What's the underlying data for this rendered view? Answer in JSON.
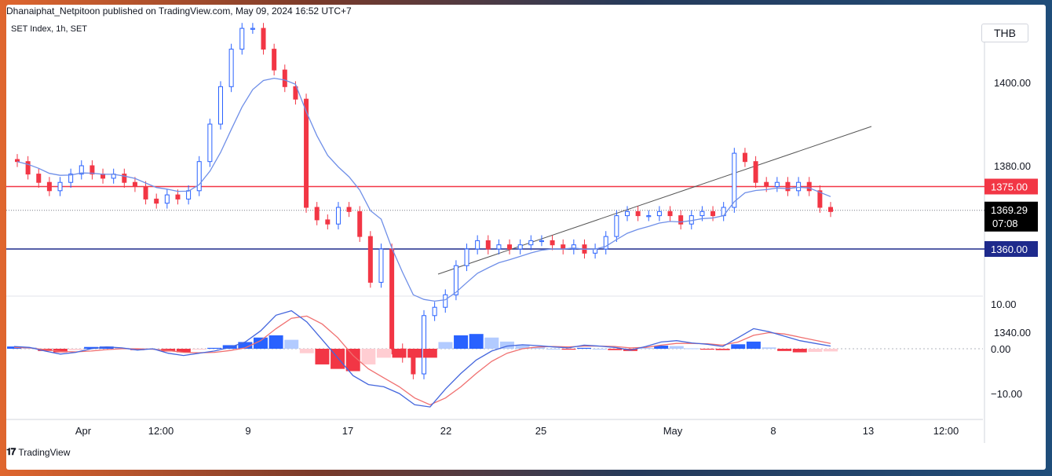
{
  "header": {
    "published_text": "Dhanaiphat_Netpitoon published on TradingView.com, May 09, 2024 16:52 UTC+7"
  },
  "legend": {
    "symbol_text": "SET Index, 1h, SET"
  },
  "currency": {
    "label": "THB"
  },
  "footer": {
    "brand": "TradingView",
    "logo": "tradingview-logo"
  },
  "colors": {
    "bull": "#2962ff",
    "bear": "#f23645",
    "ma": "#6f8fe8",
    "macd": "#4466dd",
    "signal": "#f07070",
    "resistance": "#f23645",
    "support": "#1e2a8c",
    "trend": "#555555"
  },
  "chart_data": [
    {
      "type": "candlestick",
      "title": "",
      "symbol": "SET Index, 1h, SET",
      "currency": "THB",
      "x_labels": [
        "Apr",
        "12:00",
        "9",
        "17",
        "22",
        "25",
        "May",
        "8",
        "13",
        "12:00"
      ],
      "y_axis": {
        "ticks": [
          1340,
          1360,
          1380,
          1400
        ],
        "range": [
          1333,
          1422
        ]
      },
      "horizontal_levels": [
        {
          "name": "1375.00",
          "value": 1375.0
        },
        {
          "name": "1360.00",
          "value": 1360.0
        }
      ],
      "last_price": {
        "value": "1369.29",
        "countdown": "07:08"
      },
      "tick_labels": {
        "y": [
          "1340.00",
          "1380.00",
          "1400.00"
        ]
      },
      "level_labels": [
        "1375.00",
        "1360.00"
      ],
      "close_path": [
        1381,
        1378,
        1376,
        1374,
        1376,
        1378,
        1380,
        1378,
        1377,
        1378,
        1376,
        1375,
        1372,
        1371,
        1373,
        1372,
        1374,
        1381,
        1390,
        1399,
        1408,
        1413,
        1413,
        1408,
        1403,
        1399,
        1396,
        1370,
        1367,
        1366,
        1370,
        1369,
        1363,
        1352,
        1360,
        1336,
        1334,
        1330,
        1344,
        1346,
        1349,
        1356,
        1360,
        1362,
        1360,
        1361,
        1360,
        1361,
        1362,
        1362,
        1361,
        1360,
        1361,
        1359,
        1360,
        1363,
        1368,
        1369,
        1368,
        1368,
        1369,
        1368,
        1366,
        1368,
        1369,
        1368,
        1370,
        1383,
        1381,
        1376,
        1375,
        1376,
        1374,
        1376,
        1374,
        1370,
        1369
      ],
      "macd": {
        "zero": 0,
        "ticks": [
          10,
          0,
          -10
        ],
        "tick_labels": [
          "10.00",
          "0.00",
          "−10.00"
        ],
        "macd_line": [
          0.5,
          0.3,
          -0.5,
          -1.2,
          -0.8,
          0,
          0.4,
          0.2,
          -0.3,
          0,
          -1,
          -1.5,
          -1,
          -0.5,
          0.3,
          1.5,
          4,
          7.5,
          8.5,
          6,
          2,
          -2,
          -6,
          -8,
          -8.5,
          -10,
          -12.5,
          -13,
          -9,
          -5.5,
          -2.5,
          -0.5,
          0.6,
          0.9,
          0.7,
          0.4,
          0.2,
          0.8,
          0.6,
          0.3,
          -0.3,
          0.5,
          1.5,
          1.8,
          1.3,
          1,
          0.5,
          2.5,
          4.5,
          3.8,
          2.8,
          1.8,
          1.2,
          0.6
        ],
        "signal_line": [
          0.3,
          0.2,
          -0.2,
          -0.6,
          -0.7,
          -0.5,
          -0.2,
          0,
          0,
          -0.1,
          -0.4,
          -0.8,
          -0.9,
          -0.8,
          -0.4,
          0.2,
          1.8,
          4.5,
          6.8,
          7.3,
          5.5,
          2.5,
          -1.5,
          -4.5,
          -6.5,
          -8.5,
          -11,
          -12.5,
          -11,
          -8.5,
          -5.5,
          -2.8,
          -1,
          0,
          0.4,
          0.5,
          0.4,
          0.6,
          0.6,
          0.5,
          0.2,
          0.3,
          0.8,
          1.2,
          1.2,
          1.1,
          0.8,
          1.5,
          3,
          3.6,
          3.3,
          2.6,
          1.9,
          1.2
        ],
        "histogram": [
          0.5,
          0.3,
          -0.5,
          -0.8,
          -0.3,
          0.4,
          0.5,
          0.2,
          -0.3,
          0,
          -0.6,
          -0.8,
          -0.2,
          0.2,
          0.8,
          1.5,
          2.5,
          3,
          2,
          -1,
          -3.5,
          -4.5,
          -5,
          -3.5,
          -2,
          -2,
          -2,
          -2,
          1.5,
          3,
          3.3,
          2.5,
          1.6,
          0.9,
          0.4,
          0,
          -0.2,
          0.2,
          0,
          -0.3,
          -0.5,
          0.2,
          0.7,
          0.6,
          0.1,
          -0.2,
          -0.3,
          1,
          1.6,
          0.3,
          -0.5,
          -0.8,
          -0.7,
          -0.6
        ]
      }
    }
  ]
}
